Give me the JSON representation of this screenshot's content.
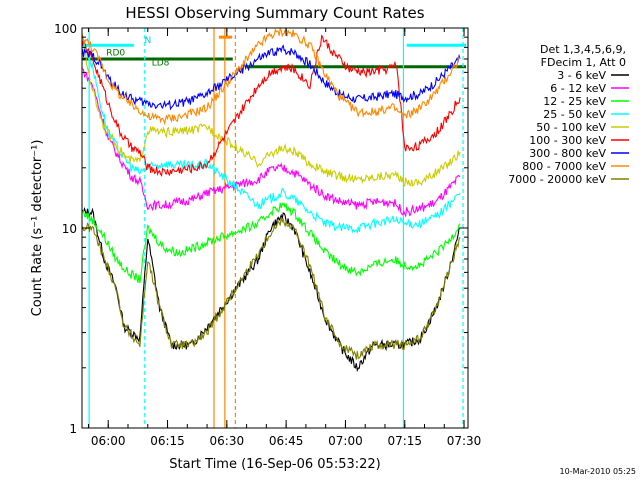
{
  "chart_data": {
    "type": "line",
    "title": "HESSI Observing Summary Count Rates",
    "xlabel": "Start Time (16-Sep-06 05:53:22)",
    "ylabel": "Count Rate (s⁻¹ detector⁻¹)",
    "yscale": "log",
    "ylim": [
      1,
      100
    ],
    "xlim": [
      "05:53:22",
      "07:31:00"
    ],
    "grid": false,
    "x_ticks": [
      "06:00",
      "06:15",
      "06:30",
      "06:45",
      "07:00",
      "07:15",
      "07:30"
    ],
    "y_ticks": [
      "1",
      "10",
      "100"
    ],
    "legend_position": "right",
    "legend_header": [
      "Det 1,3,4,5,6,9,",
      "FDecim 1, Att 0"
    ],
    "series": [
      {
        "name": "3 - 6 keV",
        "color": "#000000",
        "points": [
          [
            "05:53:30",
            12
          ],
          [
            "05:56:00",
            12
          ],
          [
            "05:59:00",
            7
          ],
          [
            "06:02:00",
            5
          ],
          [
            "06:04:00",
            3.2
          ],
          [
            "06:08:00",
            2.8
          ],
          [
            "06:10:00",
            9
          ],
          [
            "06:13:00",
            4
          ],
          [
            "06:16:00",
            2.6
          ],
          [
            "06:21:00",
            2.6
          ],
          [
            "06:25:00",
            3.2
          ],
          [
            "06:38:00",
            7
          ],
          [
            "06:41:00",
            10
          ],
          [
            "06:44:00",
            11.5
          ],
          [
            "06:47:00",
            10
          ],
          [
            "06:51:00",
            6
          ],
          [
            "06:55:00",
            3.5
          ],
          [
            "06:59:00",
            2.5
          ],
          [
            "07:03:00",
            2
          ],
          [
            "07:07:00",
            2.6
          ],
          [
            "07:12:00",
            2.6
          ],
          [
            "07:15:00",
            2.6
          ],
          [
            "07:19:00",
            2.8
          ],
          [
            "07:23:00",
            4
          ],
          [
            "07:26:00",
            6
          ],
          [
            "07:29:00",
            10
          ]
        ]
      },
      {
        "name": "6 - 12 keV",
        "color": "#ff00ff",
        "points": [
          [
            "05:53:30",
            62
          ],
          [
            "05:56:00",
            52
          ],
          [
            "05:58:00",
            38
          ],
          [
            "06:00:00",
            28
          ],
          [
            "06:03:00",
            22
          ],
          [
            "06:06:00",
            18
          ],
          [
            "06:08:00",
            17
          ],
          [
            "06:10:00",
            13
          ],
          [
            "06:14:00",
            13
          ],
          [
            "06:18:00",
            13.5
          ],
          [
            "06:22:00",
            14
          ],
          [
            "06:25:00",
            15
          ],
          [
            "06:38:00",
            17.5
          ],
          [
            "06:41:00",
            19.5
          ],
          [
            "06:44:00",
            20
          ],
          [
            "06:47:00",
            19
          ],
          [
            "06:51:00",
            16.5
          ],
          [
            "06:55:00",
            14.5
          ],
          [
            "06:59:00",
            13.5
          ],
          [
            "07:03:00",
            13
          ],
          [
            "07:07:00",
            13.5
          ],
          [
            "07:12:00",
            13.5
          ],
          [
            "07:15:00",
            12
          ],
          [
            "07:19:00",
            12.5
          ],
          [
            "07:23:00",
            13.5
          ],
          [
            "07:26:00",
            15.5
          ],
          [
            "07:29:00",
            18
          ]
        ]
      },
      {
        "name": "12 - 25 keV",
        "color": "#00ff00",
        "points": [
          [
            "05:53:30",
            12
          ],
          [
            "05:56:00",
            11
          ],
          [
            "05:59:00",
            9
          ],
          [
            "06:02:00",
            7
          ],
          [
            "06:05:00",
            6
          ],
          [
            "06:08:00",
            5.5
          ],
          [
            "06:10:00",
            10
          ],
          [
            "06:14:00",
            8
          ],
          [
            "06:18:00",
            7.5
          ],
          [
            "06:22:00",
            8
          ],
          [
            "06:25:00",
            8.5
          ],
          [
            "06:38:00",
            10.5
          ],
          [
            "06:41:00",
            12
          ],
          [
            "06:44:00",
            13
          ],
          [
            "06:47:00",
            12
          ],
          [
            "06:51:00",
            9.5
          ],
          [
            "06:55:00",
            7.5
          ],
          [
            "06:59:00",
            6.5
          ],
          [
            "07:03:00",
            6
          ],
          [
            "07:07:00",
            6.5
          ],
          [
            "07:12:00",
            7
          ],
          [
            "07:15:00",
            6.5
          ],
          [
            "07:19:00",
            6.5
          ],
          [
            "07:23:00",
            7.5
          ],
          [
            "07:26:00",
            8.5
          ],
          [
            "07:29:00",
            10.5
          ]
        ]
      },
      {
        "name": "25 - 50 keV",
        "color": "#00ffff",
        "points": [
          [
            "05:53:30",
            85
          ],
          [
            "05:56:00",
            65
          ],
          [
            "05:58:00",
            42
          ],
          [
            "06:00:00",
            30
          ],
          [
            "06:03:00",
            24
          ],
          [
            "06:06:00",
            20
          ],
          [
            "06:08:00",
            19
          ],
          [
            "06:10:00",
            20
          ],
          [
            "06:14:00",
            21
          ],
          [
            "06:18:00",
            20.5
          ],
          [
            "06:22:00",
            20.5
          ],
          [
            "06:25:00",
            21
          ],
          [
            "06:38:00",
            13
          ],
          [
            "06:41:00",
            14
          ],
          [
            "06:44:00",
            15
          ],
          [
            "06:47:00",
            14
          ],
          [
            "06:51:00",
            12
          ],
          [
            "06:55:00",
            10.5
          ],
          [
            "06:59:00",
            10
          ],
          [
            "07:03:00",
            10
          ],
          [
            "07:07:00",
            10.5
          ],
          [
            "07:12:00",
            11
          ],
          [
            "07:15:00",
            10.5
          ],
          [
            "07:19:00",
            10.5
          ],
          [
            "07:23:00",
            11.5
          ],
          [
            "07:26:00",
            13
          ],
          [
            "07:29:00",
            15
          ]
        ]
      },
      {
        "name": "50 - 100 keV",
        "color": "#cccc00",
        "points": [
          [
            "05:53:30",
            85
          ],
          [
            "05:55:00",
            60
          ],
          [
            "05:57:00",
            42
          ],
          [
            "05:59:00",
            32
          ],
          [
            "06:02:00",
            26
          ],
          [
            "06:05:00",
            22
          ],
          [
            "06:08:00",
            21.5
          ],
          [
            "06:10:00",
            31
          ],
          [
            "06:14:00",
            30
          ],
          [
            "06:18:00",
            30.5
          ],
          [
            "06:22:00",
            31
          ],
          [
            "06:25:00",
            32
          ],
          [
            "06:38:00",
            21
          ],
          [
            "06:41:00",
            23.5
          ],
          [
            "06:44:00",
            25
          ],
          [
            "06:47:00",
            24
          ],
          [
            "06:51:00",
            21
          ],
          [
            "06:55:00",
            19
          ],
          [
            "06:59:00",
            18
          ],
          [
            "07:03:00",
            17.5
          ],
          [
            "07:07:00",
            18
          ],
          [
            "07:12:00",
            18.5
          ],
          [
            "07:15:00",
            17
          ],
          [
            "07:19:00",
            17
          ],
          [
            "07:23:00",
            19
          ],
          [
            "07:26:00",
            21
          ],
          [
            "07:29:00",
            24
          ]
        ]
      },
      {
        "name": "100 - 300 keV",
        "color": "#ff0000",
        "points": [
          [
            "05:53:30",
            85
          ],
          [
            "05:56:00",
            70
          ],
          [
            "05:58:00",
            55
          ],
          [
            "06:00:00",
            42
          ],
          [
            "06:03:00",
            30
          ],
          [
            "06:06:00",
            25
          ],
          [
            "06:08:00",
            24
          ],
          [
            "06:10:00",
            20
          ],
          [
            "06:14:00",
            19
          ],
          [
            "06:18:00",
            19.5
          ],
          [
            "06:22:00",
            20
          ],
          [
            "06:25:00",
            21
          ],
          [
            "06:38:00",
            52
          ],
          [
            "06:41:00",
            60
          ],
          [
            "06:44:00",
            64
          ],
          [
            "06:47:00",
            62
          ],
          [
            "06:51:00",
            52
          ],
          [
            "06:54:00",
            90
          ],
          [
            "06:57:00",
            75
          ],
          [
            "07:01:00",
            62
          ],
          [
            "07:05:00",
            60
          ],
          [
            "07:10:00",
            62
          ],
          [
            "07:13:00",
            65
          ],
          [
            "07:15:00",
            25
          ],
          [
            "07:19:00",
            26
          ],
          [
            "07:23:00",
            30
          ],
          [
            "07:26:00",
            36
          ],
          [
            "07:29:00",
            45
          ]
        ]
      },
      {
        "name": "300 - 800 keV",
        "color": "#0000ff",
        "points": [
          [
            "05:53:30",
            75
          ],
          [
            "05:56:00",
            73
          ],
          [
            "05:58:00",
            66
          ],
          [
            "06:00:00",
            56
          ],
          [
            "06:03:00",
            48
          ],
          [
            "06:06:00",
            44
          ],
          [
            "06:08:00",
            43
          ],
          [
            "06:10:00",
            42
          ],
          [
            "06:14:00",
            41
          ],
          [
            "06:18:00",
            42
          ],
          [
            "06:22:00",
            44
          ],
          [
            "06:25:00",
            47
          ],
          [
            "06:38:00",
            70
          ],
          [
            "06:41:00",
            75
          ],
          [
            "06:44:00",
            78
          ],
          [
            "06:47:00",
            76
          ],
          [
            "06:51:00",
            66
          ],
          [
            "06:55:00",
            53
          ],
          [
            "06:59:00",
            46
          ],
          [
            "07:03:00",
            44
          ],
          [
            "07:07:00",
            45
          ],
          [
            "07:12:00",
            47
          ],
          [
            "07:15:00",
            45
          ],
          [
            "07:19:00",
            47
          ],
          [
            "07:23:00",
            54
          ],
          [
            "07:26:00",
            62
          ],
          [
            "07:29:00",
            70
          ]
        ]
      },
      {
        "name": "800 - 7000 keV",
        "color": "#ff8800",
        "points": [
          [
            "05:53:30",
            90
          ],
          [
            "05:56:00",
            80
          ],
          [
            "05:58:00",
            68
          ],
          [
            "06:00:00",
            55
          ],
          [
            "06:03:00",
            46
          ],
          [
            "06:06:00",
            41
          ],
          [
            "06:08:00",
            39
          ],
          [
            "06:10:00",
            36
          ],
          [
            "06:14:00",
            35
          ],
          [
            "06:18:00",
            36
          ],
          [
            "06:22:00",
            38
          ],
          [
            "06:25:00",
            40
          ],
          [
            "06:38:00",
            82
          ],
          [
            "06:41:00",
            92
          ],
          [
            "06:44:00",
            96
          ],
          [
            "06:47:00",
            93
          ],
          [
            "06:51:00",
            82
          ],
          [
            "06:55:00",
            58
          ],
          [
            "06:59:00",
            44
          ],
          [
            "07:03:00",
            38
          ],
          [
            "07:07:00",
            38
          ],
          [
            "07:12:00",
            40
          ],
          [
            "07:15:00",
            36
          ],
          [
            "07:19:00",
            40
          ],
          [
            "07:23:00",
            48
          ],
          [
            "07:26:00",
            58
          ],
          [
            "07:29:00",
            70
          ]
        ]
      },
      {
        "name": "7000 - 20000 keV",
        "color": "#808000",
        "points": [
          [
            "05:53:30",
            10
          ],
          [
            "05:56:00",
            10
          ],
          [
            "05:59:00",
            7
          ],
          [
            "06:02:00",
            5
          ],
          [
            "06:04:00",
            3.2
          ],
          [
            "06:08:00",
            2.6
          ],
          [
            "06:10:00",
            7
          ],
          [
            "06:13:00",
            4
          ],
          [
            "06:16:00",
            2.6
          ],
          [
            "06:21:00",
            2.6
          ],
          [
            "06:25:00",
            3
          ],
          [
            "06:38:00",
            7.5
          ],
          [
            "06:41:00",
            9.5
          ],
          [
            "06:44:00",
            11
          ],
          [
            "06:47:00",
            10
          ],
          [
            "06:51:00",
            6.5
          ],
          [
            "06:55:00",
            3.5
          ],
          [
            "06:59:00",
            2.6
          ],
          [
            "07:03:00",
            2.3
          ],
          [
            "07:07:00",
            2.6
          ],
          [
            "07:12:00",
            2.6
          ],
          [
            "07:15:00",
            2.6
          ],
          [
            "07:19:00",
            2.8
          ],
          [
            "07:23:00",
            4
          ],
          [
            "07:26:00",
            6
          ],
          [
            "07:29:00",
            9
          ]
        ]
      }
    ],
    "vertical_lines": [
      {
        "time": "05:55:10",
        "color": "#00ffff",
        "style": "solid"
      },
      {
        "time": "06:09:15",
        "color": "#00ffff",
        "style": "dashed"
      },
      {
        "time": "06:26:45",
        "color": "#ff8800",
        "style": "solid"
      },
      {
        "time": "06:29:30",
        "color": "#ff8800",
        "style": "solid"
      },
      {
        "time": "06:32:10",
        "color": "#ff8800",
        "style": "dashed"
      },
      {
        "time": "07:14:40",
        "color": "#00ffff",
        "style": "solid"
      },
      {
        "time": "07:29:45",
        "color": "#00ffff",
        "style": "dashed"
      }
    ],
    "status_bars": [
      {
        "color": "#00ffff",
        "value": 82,
        "from": "05:53:30",
        "to": "06:06:30",
        "label": "RD0"
      },
      {
        "color": "#00ffff",
        "value": 82,
        "from": "07:15:30",
        "to": "07:30:30",
        "label": ""
      },
      {
        "color": "#ff8800",
        "value": 90,
        "from": "06:28:00",
        "to": "06:31:20",
        "label": ""
      },
      {
        "color": "#006600",
        "value": 70,
        "from": "05:53:30",
        "to": "06:31:30",
        "label": ""
      },
      {
        "color": "#006600",
        "value": 64,
        "from": "06:35:00",
        "to": "07:30:30",
        "label": ""
      }
    ],
    "annotations": [
      {
        "text": "N",
        "time": "06:09:10",
        "value": 84,
        "color": "#00cccc"
      },
      {
        "text": "RD0",
        "time": "05:59:30",
        "value": 73,
        "color": "#007700"
      },
      {
        "text": "LD8",
        "time": "06:11:00",
        "value": 65,
        "color": "#007700"
      }
    ]
  },
  "footer": {
    "timestamp": "10-Mar-2010 05:25"
  }
}
